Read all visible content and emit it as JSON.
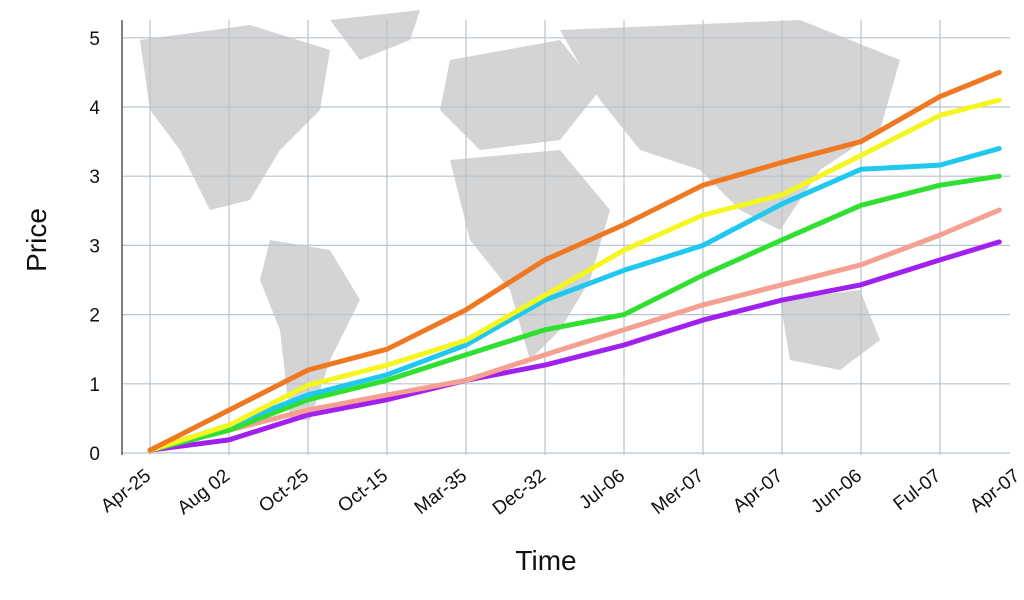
{
  "chart_data": {
    "type": "line",
    "title": "",
    "xlabel": "Time",
    "ylabel": "Price",
    "x_tick_labels": [
      "Apr-25",
      "Aug 02",
      "Oct-25",
      "Oct-15",
      "Mar-35",
      "Dec-32",
      "Jul-06",
      "Mer-07",
      "Apr-07",
      "Jun-06",
      "Ful-07",
      "Apr-07"
    ],
    "y_tick_labels": [
      "0",
      "1",
      "2",
      "3",
      "3",
      "4",
      "5"
    ],
    "ylim": [
      0,
      6
    ],
    "grid": true,
    "background": "world map (gray)",
    "x": [
      0,
      1,
      2,
      3,
      4,
      5,
      6,
      7,
      8,
      9,
      10,
      10.75
    ],
    "series": [
      {
        "color": "#f07820",
        "values": [
          0.04,
          0.62,
          1.2,
          1.5,
          2.07,
          2.79,
          3.3,
          3.87,
          4.2,
          4.5,
          5.15,
          5.5
        ]
      },
      {
        "color": "#f5f520",
        "values": [
          0.04,
          0.4,
          0.98,
          1.27,
          1.63,
          2.28,
          2.93,
          3.44,
          3.73,
          4.3,
          4.88,
          5.1
        ]
      },
      {
        "color": "#20c8f0",
        "values": [
          0.04,
          0.4,
          0.84,
          1.13,
          1.56,
          2.21,
          2.64,
          3.0,
          3.6,
          4.1,
          4.16,
          4.4
        ]
      },
      {
        "color": "#30e030",
        "values": [
          0.04,
          0.33,
          0.77,
          1.05,
          1.42,
          1.78,
          2.0,
          2.57,
          3.08,
          3.58,
          3.87,
          4.0
        ]
      },
      {
        "color": "#f5a090",
        "values": [
          0.04,
          0.33,
          0.62,
          0.84,
          1.05,
          1.42,
          1.78,
          2.14,
          2.43,
          2.72,
          3.15,
          3.51
        ]
      },
      {
        "color": "#a020f0",
        "values": [
          0.04,
          0.19,
          0.55,
          0.77,
          1.05,
          1.27,
          1.56,
          1.92,
          2.21,
          2.43,
          2.79,
          3.05
        ]
      }
    ]
  }
}
